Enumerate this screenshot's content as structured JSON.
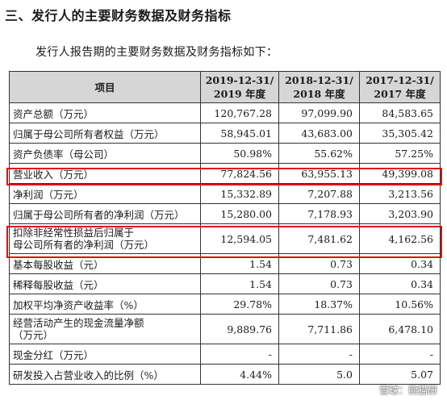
{
  "heading": "三、发行人的主要财务数据及财务指标",
  "intro": "发行人报告期的主要财务数据及财务指标如下：",
  "table": {
    "header": {
      "item": "项目",
      "col1": [
        "2019-12-31/",
        "2019 年度"
      ],
      "col2": [
        "2018-12-31/",
        "2018 年度"
      ],
      "col3": [
        "2017-12-31/",
        "2017 年度"
      ]
    },
    "rows": [
      {
        "label": "资产总额（万元）",
        "v1": "120,767.28",
        "v2": "97,099.90",
        "v3": "84,583.65"
      },
      {
        "label": "归属于母公司所有者权益（万元）",
        "v1": "58,945.01",
        "v2": "43,683.00",
        "v3": "35,305.42"
      },
      {
        "label": "资产负债率（母公司）",
        "v1": "50.98%",
        "v2": "55.62%",
        "v3": "57.25%"
      },
      {
        "label": "营业收入（万元）",
        "v1": "77,824.56",
        "v2": "63,955.13",
        "v3": "49,399.08"
      },
      {
        "label": "净利润（万元）",
        "v1": "15,332.89",
        "v2": "7,207.88",
        "v3": "3,213.56"
      },
      {
        "label": "归属于母公司所有者的净利润（万元）",
        "v1": "15,280.00",
        "v2": "7,178.93",
        "v3": "3,203.90"
      },
      {
        "label": [
          "扣除非经常性损益后归属于",
          "母公司所有者的净利润（万元）"
        ],
        "v1": "12,594.05",
        "v2": "7,481.62",
        "v3": "4,162.56"
      },
      {
        "label": "基本每股收益（元）",
        "v1": "1.54",
        "v2": "0.73",
        "v3": "0.34"
      },
      {
        "label": "稀释每股收益（元）",
        "v1": "1.54",
        "v2": "0.73",
        "v3": "0.34"
      },
      {
        "label": "加权平均净资产收益率（%）",
        "v1": "29.78%",
        "v2": "18.37%",
        "v3": "10.56%"
      },
      {
        "label": [
          "经营活动产生的现金流量净额",
          "（万元）"
        ],
        "v1": "9,889.76",
        "v2": "7,711.86",
        "v3": "6,478.10"
      },
      {
        "label": "现金分红（万元）",
        "v1": "-",
        "v2": "-",
        "v3": "-"
      },
      {
        "label": "研发投入占营业收入的比例（%）",
        "v1": "4.44%",
        "v2": "5.0",
        "v3": "5.07"
      }
    ]
  },
  "highlight_color": "#e01010",
  "watermark": "雪球：熊猫研"
}
